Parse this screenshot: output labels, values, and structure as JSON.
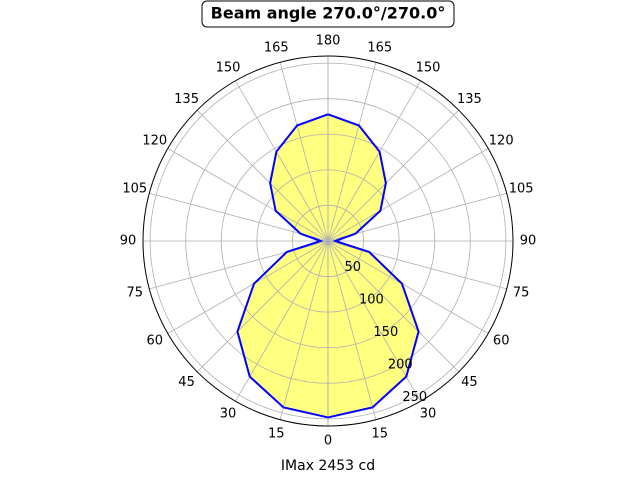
{
  "chart_data": {
    "type": "polar",
    "title": "Beam angle 270.0°/270.0°",
    "xlabel": "IMax 2453 cd",
    "theta": [
      0,
      15,
      30,
      45,
      60,
      75,
      90,
      105,
      120,
      135,
      150,
      165,
      180
    ],
    "values": [
      248,
      242,
      220,
      180,
      120,
      60,
      10,
      40,
      85,
      115,
      145,
      168,
      178
    ],
    "color": "#0000ff",
    "fill": "#ffff80",
    "rlim": [
      0,
      260
    ],
    "rticks": [
      50,
      100,
      150,
      200,
      250
    ],
    "thetaticks": [
      0,
      15,
      30,
      45,
      60,
      75,
      90,
      105,
      120,
      135,
      150,
      165,
      180
    ],
    "grid": true
  }
}
